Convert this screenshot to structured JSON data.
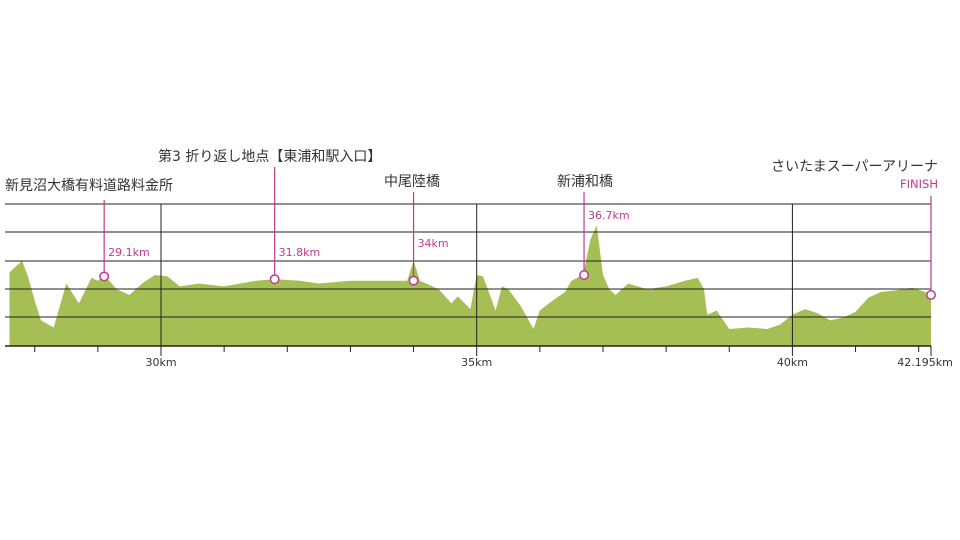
{
  "chart_data": {
    "type": "area",
    "title": "",
    "xlabel": "",
    "ylabel": "",
    "x_unit": "km",
    "xlim": [
      27.6,
      42.5
    ],
    "grid": true,
    "colors": {
      "fill": "#a6bf55",
      "axis": "#222222",
      "marker": "#c0398f",
      "label": "#333333"
    },
    "x_ticks": [
      {
        "value": 30,
        "label": "30km"
      },
      {
        "value": 35,
        "label": "35km"
      },
      {
        "value": 40,
        "label": "40km"
      },
      {
        "value": 42.195,
        "label": "42.195km"
      }
    ],
    "minor_ticks": [
      28,
      29,
      31,
      32,
      33,
      34,
      36,
      37,
      38,
      39,
      41,
      42
    ],
    "elevation_profile": {
      "x": [
        27.6,
        27.8,
        27.9,
        28.0,
        28.1,
        28.3,
        28.5,
        28.7,
        28.9,
        29.0,
        29.1,
        29.3,
        29.5,
        29.7,
        29.9,
        30.1,
        30.3,
        30.6,
        31.0,
        31.5,
        31.8,
        32.2,
        32.5,
        33.0,
        33.3,
        33.6,
        33.9,
        34.0,
        34.1,
        34.2,
        34.4,
        34.6,
        34.7,
        34.9,
        35.0,
        35.1,
        35.3,
        35.4,
        35.5,
        35.7,
        35.9,
        36.0,
        36.2,
        36.4,
        36.5,
        36.6,
        36.7,
        36.8,
        36.9,
        37.0,
        37.1,
        37.2,
        37.4,
        37.7,
        38.0,
        38.3,
        38.5,
        38.6,
        38.65,
        38.8,
        39.0,
        39.3,
        39.6,
        39.8,
        40.0,
        40.2,
        40.4,
        40.6,
        40.8,
        41.0,
        41.2,
        41.4,
        41.6,
        41.9,
        42.1,
        42.195
      ],
      "y": [
        4.2,
        5.0,
        3.8,
        2.2,
        0.8,
        0.3,
        3.4,
        2.0,
        3.8,
        3.6,
        4.0,
        3.0,
        2.6,
        3.4,
        4.0,
        3.9,
        3.2,
        3.4,
        3.2,
        3.6,
        3.7,
        3.6,
        3.4,
        3.6,
        3.6,
        3.6,
        3.6,
        5.0,
        3.6,
        3.4,
        3.0,
        2.0,
        2.5,
        1.6,
        4.0,
        3.9,
        1.5,
        3.2,
        3.0,
        1.8,
        0.2,
        1.5,
        2.2,
        2.8,
        3.6,
        3.8,
        4.3,
        6.5,
        7.5,
        4.0,
        3.0,
        2.6,
        3.4,
        3.0,
        3.2,
        3.6,
        3.8,
        3.0,
        1.2,
        1.5,
        0.2,
        0.3,
        0.2,
        0.5,
        1.2,
        1.6,
        1.3,
        0.8,
        1.0,
        1.4,
        2.4,
        2.8,
        2.9,
        3.1,
        2.8,
        2.6
      ],
      "ylim": [
        -1.0,
        9.0
      ]
    },
    "markers": [
      {
        "x": 29.1,
        "y": 3.9,
        "label": "29.1km",
        "place": "新見沼大橋有料道路料金所"
      },
      {
        "x": 31.8,
        "y": 3.7,
        "label": "31.8km",
        "place": "第3 折り返し地点【東浦和駅入口】"
      },
      {
        "x": 34.0,
        "y": 3.6,
        "label": "34km",
        "place": "中尾陸橋"
      },
      {
        "x": 36.7,
        "y": 4.0,
        "label": "36.7km",
        "place": "新浦和橋"
      },
      {
        "x": 42.195,
        "y": 2.6,
        "label": "FINISH",
        "place": "さいたまスーパーアリーナ"
      }
    ]
  }
}
